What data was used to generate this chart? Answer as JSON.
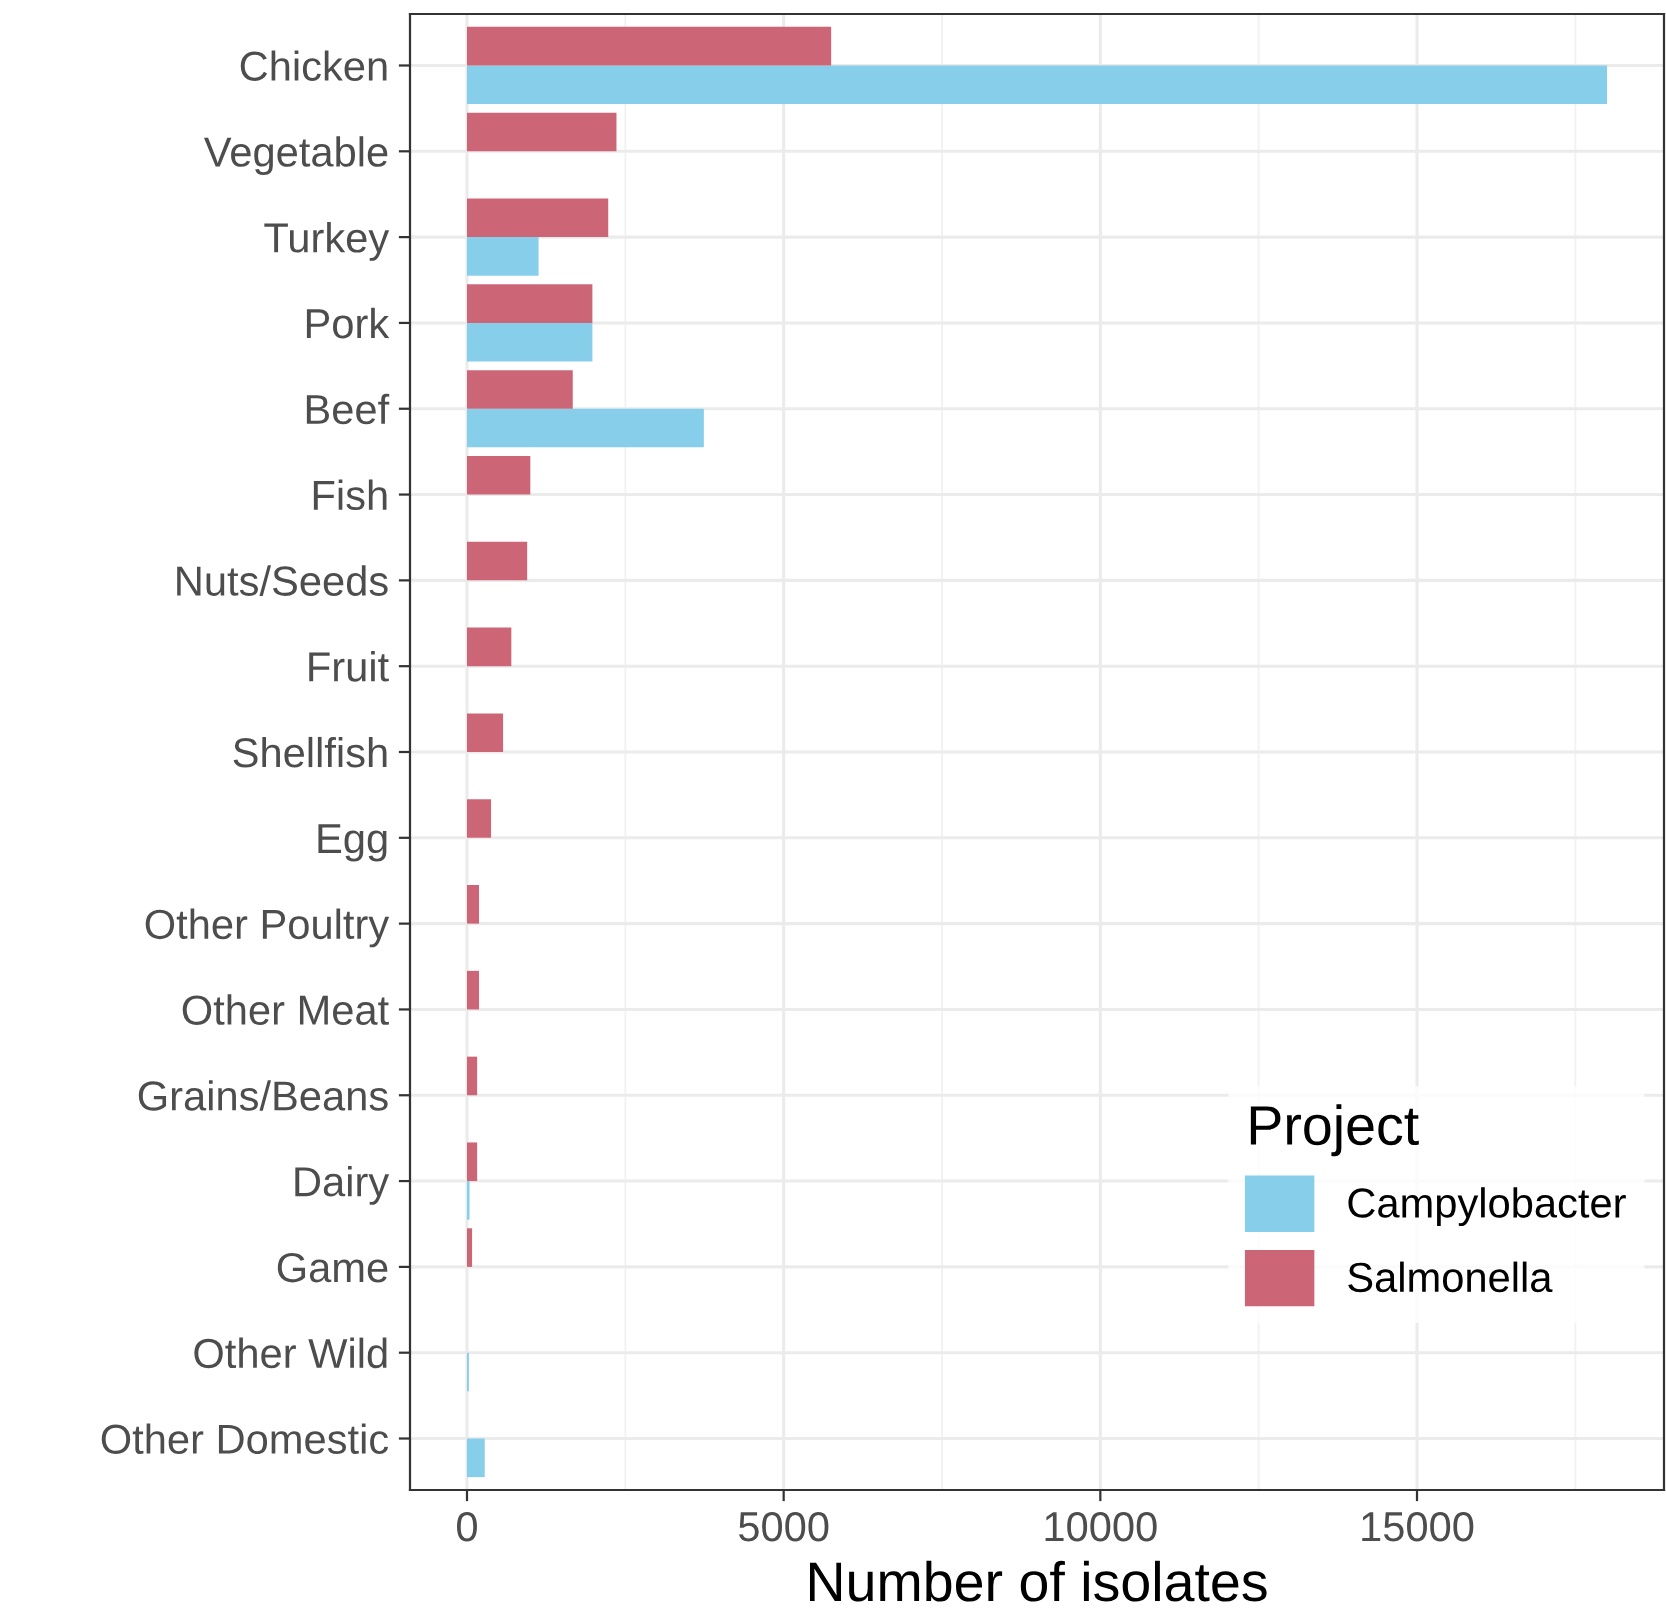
{
  "chart_data": {
    "type": "bar",
    "orientation": "horizontal",
    "xlabel": "Number of isolates",
    "legend_title": "Project",
    "categories": [
      "Chicken",
      "Vegetable",
      "Turkey",
      "Pork",
      "Beef",
      "Fish",
      "Nuts/Seeds",
      "Fruit",
      "Shellfish",
      "Egg",
      "Other Poultry",
      "Other Meat",
      "Grains/Beans",
      "Dairy",
      "Game",
      "Other Wild",
      "Other Domestic"
    ],
    "series": [
      {
        "name": "Campylobacter",
        "color": "#87ceeb",
        "values": [
          18000,
          null,
          1130,
          1980,
          3740,
          null,
          null,
          null,
          null,
          null,
          null,
          null,
          null,
          40,
          null,
          30,
          280
        ]
      },
      {
        "name": "Salmonella",
        "color": "#cc6677",
        "values": [
          5750,
          2360,
          2230,
          1980,
          1670,
          1000,
          950,
          700,
          570,
          380,
          190,
          190,
          160,
          160,
          80,
          null,
          null
        ]
      }
    ],
    "xlim": [
      -900,
      18900
    ],
    "xticks": [
      0,
      5000,
      10000,
      15000
    ],
    "grid": true,
    "legend": "bottom right"
  }
}
